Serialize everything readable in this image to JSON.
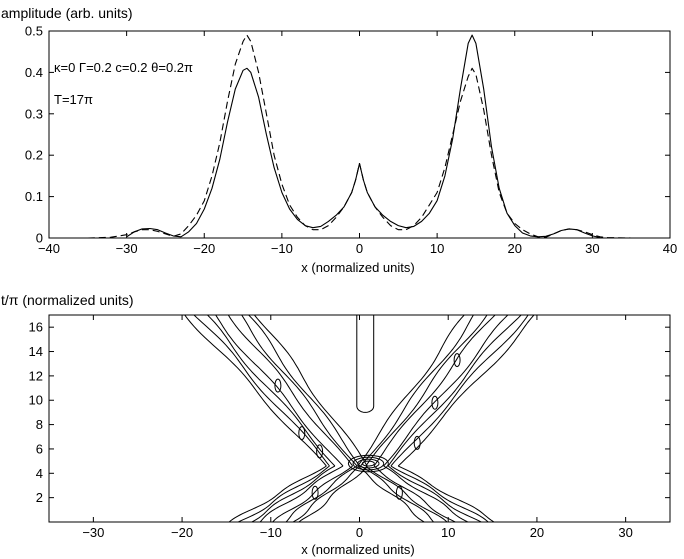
{
  "chart_data": [
    {
      "type": "line",
      "ylabel": "amplitude (arb. units)",
      "xlabel": "x (normalized units)",
      "xlim": [
        -40,
        40
      ],
      "ylim": [
        0,
        0.5
      ],
      "xticks": [
        -40,
        -30,
        -20,
        -10,
        0,
        10,
        20,
        30,
        40
      ],
      "yticks": [
        0,
        0.1,
        0.2,
        0.3,
        0.4,
        0.5
      ],
      "annotations": [
        "κ=0  Γ=0.2  c=0.2  θ=0.2π",
        "T=17π"
      ],
      "grid": false,
      "series": [
        {
          "style": "solid",
          "x": [
            -30,
            -29,
            -28,
            -27,
            -26,
            -25,
            -24,
            -23,
            -22,
            -21,
            -20,
            -19,
            -18,
            -17,
            -16,
            -15,
            -14.5,
            -14,
            -13,
            -12,
            -11,
            -10,
            -9,
            -8,
            -7,
            -6,
            -5,
            -4,
            -3,
            -2,
            -1,
            -0.5,
            0,
            0.5,
            1,
            2,
            3,
            4,
            5,
            6,
            7,
            8,
            9,
            10,
            11,
            12,
            13,
            14,
            14.5,
            15,
            16,
            17,
            18,
            19,
            20,
            21,
            22,
            23,
            24,
            25,
            26,
            27,
            28,
            29,
            30,
            31
          ],
          "y": [
            0.003,
            0.015,
            0.022,
            0.023,
            0.02,
            0.012,
            0.005,
            0.003,
            0.015,
            0.035,
            0.07,
            0.12,
            0.19,
            0.28,
            0.36,
            0.405,
            0.41,
            0.4,
            0.34,
            0.25,
            0.17,
            0.11,
            0.07,
            0.045,
            0.03,
            0.025,
            0.028,
            0.04,
            0.055,
            0.075,
            0.11,
            0.14,
            0.18,
            0.14,
            0.11,
            0.075,
            0.055,
            0.04,
            0.03,
            0.025,
            0.028,
            0.04,
            0.06,
            0.09,
            0.15,
            0.24,
            0.36,
            0.47,
            0.49,
            0.47,
            0.36,
            0.22,
            0.12,
            0.06,
            0.03,
            0.012,
            0.005,
            0.003,
            0.004,
            0.01,
            0.018,
            0.022,
            0.02,
            0.012,
            0.005,
            0.001
          ]
        },
        {
          "style": "dashed",
          "x": [
            -35,
            -32,
            -30,
            -29,
            -28,
            -27,
            -26,
            -25,
            -24,
            -23,
            -22,
            -21,
            -20,
            -19,
            -18,
            -17,
            -16,
            -15,
            -14.5,
            -14,
            -13,
            -12,
            -11,
            -10,
            -9,
            -8,
            -7,
            -6,
            -5,
            -4,
            -3,
            -2,
            -1,
            -0.5,
            0,
            0.5,
            1,
            2,
            3,
            4,
            5,
            6,
            7,
            8,
            9,
            10,
            11,
            12,
            13,
            14,
            14.5,
            15,
            16,
            17,
            18,
            19,
            20,
            21,
            22,
            23,
            24,
            25,
            26,
            27,
            28,
            29,
            30,
            31,
            32,
            35
          ],
          "y": [
            0,
            0.002,
            0.008,
            0.015,
            0.02,
            0.02,
            0.016,
            0.01,
            0.004,
            0.01,
            0.03,
            0.055,
            0.09,
            0.15,
            0.23,
            0.33,
            0.42,
            0.475,
            0.49,
            0.475,
            0.4,
            0.3,
            0.2,
            0.13,
            0.08,
            0.05,
            0.03,
            0.02,
            0.02,
            0.03,
            0.05,
            0.075,
            0.11,
            0.14,
            0.18,
            0.14,
            0.11,
            0.075,
            0.05,
            0.03,
            0.02,
            0.02,
            0.03,
            0.05,
            0.08,
            0.11,
            0.17,
            0.25,
            0.33,
            0.39,
            0.41,
            0.395,
            0.31,
            0.2,
            0.11,
            0.06,
            0.035,
            0.02,
            0.01,
            0.003,
            0.002,
            0.01,
            0.018,
            0.022,
            0.02,
            0.015,
            0.008,
            0.003,
            0.001,
            0
          ]
        }
      ]
    },
    {
      "type": "contour",
      "ylabel": "t/π (normalized units)",
      "xlabel": "x (normalized units)",
      "xlim": [
        -35,
        35
      ],
      "ylim": [
        0,
        17
      ],
      "xticks": [
        -30,
        -20,
        -10,
        0,
        10,
        20,
        30
      ],
      "yticks": [
        2,
        4,
        6,
        8,
        10,
        12,
        14,
        16
      ],
      "grid": false,
      "ridges": [
        {
          "name": "left-moving",
          "from": [
            -1.5,
            4.6
          ],
          "to": [
            -15.5,
            17
          ],
          "width": 5,
          "levels": [
            0.9,
            1.9,
            2.9,
            4.0
          ]
        },
        {
          "name": "right-moving",
          "from": [
            2,
            4.6
          ],
          "to": [
            16,
            17
          ],
          "width": 5,
          "levels": [
            0.9,
            1.9,
            2.9,
            4.0
          ]
        },
        {
          "name": "lower-left leg",
          "from": [
            -1.5,
            4.6
          ],
          "to": [
            -10.5,
            0
          ],
          "width": 3.6,
          "levels": [
            0.9,
            1.9,
            2.9,
            4.0
          ]
        },
        {
          "name": "lower-right leg",
          "from": [
            2,
            4.6
          ],
          "to": [
            11.5,
            0
          ],
          "width": 3.6,
          "levels": [
            0.9,
            1.9,
            2.9,
            4.0
          ]
        }
      ],
      "central_peak": {
        "x": 1,
        "t": 4.8,
        "levels": [
          0.45,
          0.8,
          1.15,
          1.5
        ]
      },
      "central_channel": {
        "x": [
          -0.3,
          1.6
        ],
        "t_range": [
          9,
          17
        ]
      },
      "islands": [
        {
          "x": -9.2,
          "t": 11.2
        },
        {
          "x": -6.5,
          "t": 7.3
        },
        {
          "x": -4.5,
          "t": 5.8
        },
        {
          "x": -5,
          "t": 2.4
        },
        {
          "x": 4.5,
          "t": 2.4
        },
        {
          "x": 8.5,
          "t": 9.8
        },
        {
          "x": 11,
          "t": 13.3
        },
        {
          "x": 6.5,
          "t": 6.5
        }
      ]
    }
  ]
}
